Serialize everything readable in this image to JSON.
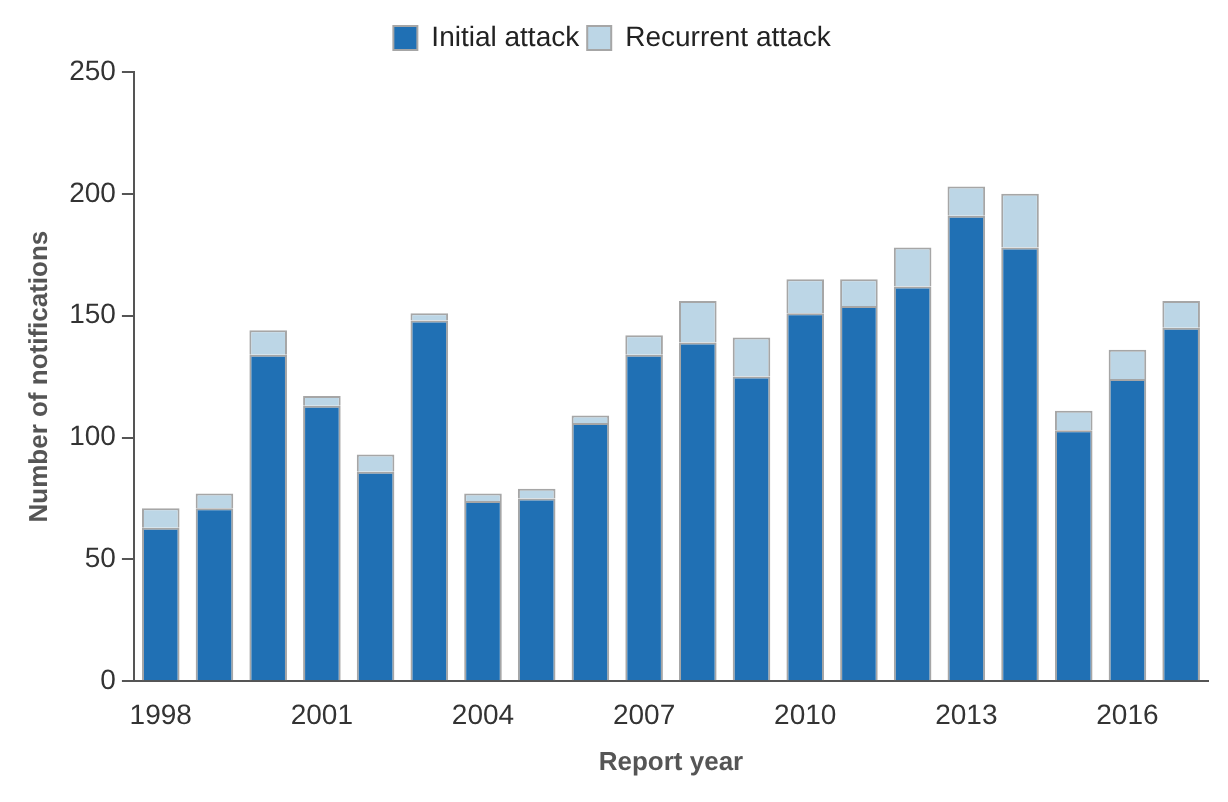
{
  "chart_data": {
    "type": "bar",
    "stacked": true,
    "xlabel": "Report year",
    "ylabel": "Number of notifications",
    "categories": [
      "1998",
      null,
      null,
      "2001",
      null,
      null,
      "2004",
      null,
      null,
      "2007",
      null,
      null,
      "2010",
      null,
      null,
      "2013",
      null,
      null,
      "2016",
      null
    ],
    "series": [
      {
        "name": "Initial attack",
        "color": "#2070b4",
        "values": [
          63,
          71,
          134,
          113,
          86,
          148,
          74,
          75,
          106,
          134,
          139,
          125,
          151,
          154,
          162,
          191,
          178,
          103,
          124,
          145
        ]
      },
      {
        "name": "Recurrent attack",
        "color": "#bcd6e6",
        "values": [
          8,
          6,
          10,
          4,
          7,
          3,
          3,
          4,
          3,
          8,
          17,
          16,
          14,
          11,
          16,
          12,
          22,
          8,
          12,
          11
        ]
      }
    ],
    "ylim": [
      0,
      250
    ],
    "yticks": [
      0,
      50,
      100,
      150,
      200,
      250
    ],
    "grid": false,
    "legend": "top"
  }
}
